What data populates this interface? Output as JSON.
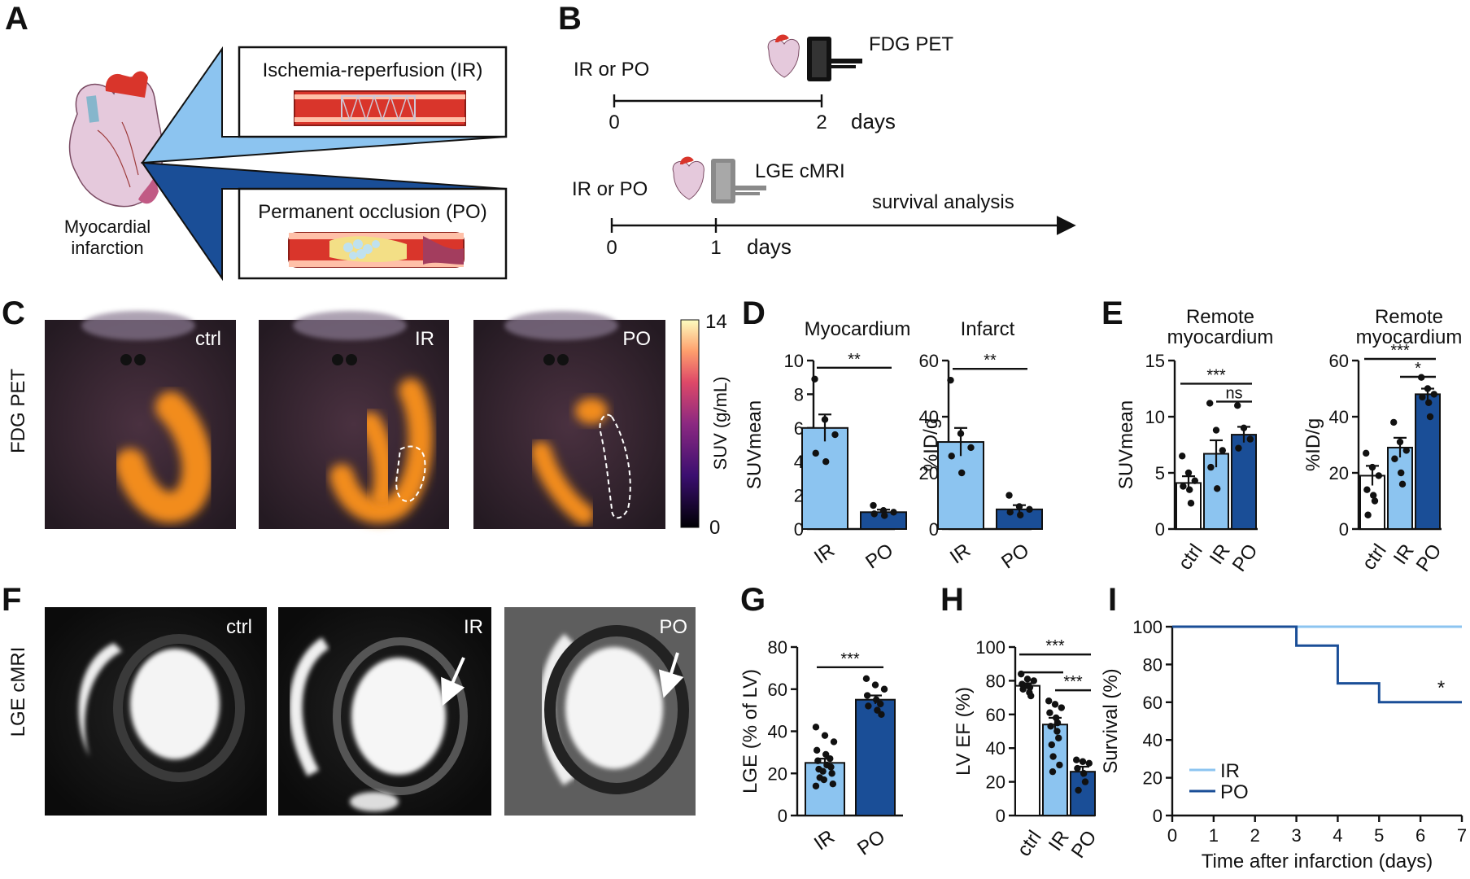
{
  "panels": {
    "A": {
      "letter": "A",
      "heart_label_line1": "Myocardial",
      "heart_label_line2": "infarction",
      "ir_label": "Ischemia-reperfusion (IR)",
      "po_label": "Permanent occlusion (PO)",
      "colors": {
        "ir": "#8cc4f0",
        "po": "#1a4e97"
      }
    },
    "B": {
      "letter": "B",
      "timeline1": {
        "group": "IR or PO",
        "modality": "FDG PET",
        "ticks": [
          "0",
          "2"
        ],
        "unit": "days"
      },
      "timeline2": {
        "group": "IR or PO",
        "modality": "LGE cMRI",
        "ticks": [
          "0",
          "1"
        ],
        "unit": "days",
        "arrow_label": "survival analysis"
      }
    },
    "C": {
      "letter": "C",
      "row_label": "FDG PET",
      "images": [
        "ctrl",
        "IR",
        "PO"
      ],
      "colorbar": {
        "label": "SUV (g/mL)",
        "max": "14",
        "min": "0"
      }
    },
    "D": {
      "letter": "D"
    },
    "E": {
      "letter": "E"
    },
    "F": {
      "letter": "F",
      "row_label": "LGE cMRI",
      "images": [
        "ctrl",
        "IR",
        "PO"
      ]
    },
    "G": {
      "letter": "G"
    },
    "H": {
      "letter": "H"
    },
    "I": {
      "letter": "I"
    }
  },
  "chart_data": [
    {
      "id": "D1",
      "type": "bar",
      "title": "Myocardium",
      "ylabel": "SUVmean",
      "categories": [
        "IR",
        "PO"
      ],
      "values": [
        6.0,
        1.0
      ],
      "errors": [
        0.8,
        0.15
      ],
      "ylim": [
        0,
        10
      ],
      "yticks": [
        "0",
        "2",
        "4",
        "6",
        "8",
        "10"
      ],
      "colors": [
        "#8cc4f0",
        "#1a4e97"
      ],
      "points": [
        [
          8.9,
          6.5,
          5.6,
          4.5,
          4.0
        ],
        [
          1.4,
          1.1,
          1.0,
          0.9,
          0.8
        ]
      ],
      "significance": [
        {
          "from": 0,
          "to": 1,
          "label": "**"
        }
      ]
    },
    {
      "id": "D2",
      "type": "bar",
      "title": "Infarct",
      "ylabel": "%ID/g",
      "categories": [
        "IR",
        "PO"
      ],
      "values": [
        31,
        7
      ],
      "errors": [
        5,
        1.5
      ],
      "ylim": [
        0,
        60
      ],
      "yticks": [
        "0",
        "20",
        "40",
        "60"
      ],
      "colors": [
        "#8cc4f0",
        "#1a4e97"
      ],
      "points": [
        [
          53,
          34,
          29,
          26,
          20
        ],
        [
          12,
          8,
          7,
          6,
          5
        ]
      ],
      "significance": [
        {
          "from": 0,
          "to": 1,
          "label": "**"
        }
      ]
    },
    {
      "id": "E1",
      "type": "bar",
      "title_line1": "Remote",
      "title_line2": "myocardium",
      "ylabel": "SUVmean",
      "categories": [
        "ctrl",
        "IR",
        "PO"
      ],
      "values": [
        4.1,
        6.7,
        8.4
      ],
      "errors": [
        0.6,
        1.2,
        0.7
      ],
      "ylim": [
        0,
        15
      ],
      "yticks": [
        "0",
        "5",
        "10",
        "15"
      ],
      "colors": [
        "#ffffff",
        "#8cc4f0",
        "#1a4e97"
      ],
      "points": [
        [
          6.5,
          5.0,
          4.3,
          3.8,
          3.5,
          2.3
        ],
        [
          11.2,
          8.8,
          7.0,
          5.5,
          3.6
        ],
        [
          11.0,
          9.0,
          8.0,
          7.2
        ]
      ],
      "significance": [
        {
          "from": 0,
          "to": 2,
          "label": "***",
          "level": 0
        },
        {
          "from": 1,
          "to": 2,
          "label": "ns",
          "level": 1
        }
      ]
    },
    {
      "id": "E2",
      "type": "bar",
      "title_line1": "Remote",
      "title_line2": "myocardium",
      "ylabel": "%ID/g",
      "categories": [
        "ctrl",
        "IR",
        "PO"
      ],
      "values": [
        19,
        29,
        48
      ],
      "errors": [
        3.5,
        3.5,
        2
      ],
      "ylim": [
        0,
        60
      ],
      "yticks": [
        "0",
        "20",
        "40",
        "60"
      ],
      "colors": [
        "#ffffff",
        "#8cc4f0",
        "#1a4e97"
      ],
      "points": [
        [
          27,
          22,
          19,
          14,
          12,
          10,
          5
        ],
        [
          38,
          31,
          28,
          25,
          20,
          16
        ],
        [
          54,
          50,
          48,
          47,
          45,
          40
        ]
      ],
      "significance": [
        {
          "from": 0,
          "to": 2,
          "label": "***",
          "level": 0
        },
        {
          "from": 1,
          "to": 2,
          "label": "*",
          "level": 1
        }
      ]
    },
    {
      "id": "G",
      "type": "bar",
      "ylabel": "LGE (% of LV)",
      "categories": [
        "IR",
        "PO"
      ],
      "values": [
        25,
        55
      ],
      "errors": [
        2,
        2
      ],
      "ylim": [
        0,
        80
      ],
      "yticks": [
        "0",
        "20",
        "40",
        "60",
        "80"
      ],
      "colors": [
        "#8cc4f0",
        "#1a4e97"
      ],
      "points": [
        [
          42,
          38,
          35,
          31,
          29,
          27,
          26,
          24,
          23,
          22,
          21,
          20,
          18,
          17,
          15,
          14
        ],
        [
          65,
          62,
          60,
          57,
          55,
          53,
          52,
          50,
          48
        ]
      ],
      "significance": [
        {
          "from": 0,
          "to": 1,
          "label": "***"
        }
      ]
    },
    {
      "id": "H",
      "type": "bar",
      "ylabel": "LV EF (%)",
      "categories": [
        "ctrl",
        "IR",
        "PO"
      ],
      "values": [
        77,
        54,
        26
      ],
      "errors": [
        1.5,
        4,
        3
      ],
      "ylim": [
        0,
        100
      ],
      "yticks": [
        "0",
        "20",
        "40",
        "60",
        "80",
        "100"
      ],
      "colors": [
        "#ffffff",
        "#8cc4f0",
        "#1a4e97"
      ],
      "points": [
        [
          84,
          81,
          80,
          78,
          77,
          76,
          75,
          73,
          71
        ],
        [
          68,
          66,
          64,
          61,
          58,
          55,
          53,
          50,
          46,
          42,
          35,
          30,
          26
        ],
        [
          33,
          32,
          31,
          28,
          25,
          20,
          15
        ]
      ],
      "significance": [
        {
          "from": 0,
          "to": 2,
          "label": "***",
          "level": 0
        },
        {
          "from": 0,
          "to": 1,
          "label": "",
          "level": 1
        },
        {
          "from": 1,
          "to": 2,
          "label": "***",
          "level": 2
        }
      ]
    },
    {
      "id": "I",
      "type": "line",
      "xlabel": "Time after infarction (days)",
      "ylabel": "Survival (%)",
      "xlim": [
        0,
        7
      ],
      "ylim": [
        0,
        100
      ],
      "xticks": [
        "0",
        "1",
        "2",
        "3",
        "4",
        "5",
        "6",
        "7"
      ],
      "yticks": [
        "0",
        "20",
        "40",
        "60",
        "80",
        "100"
      ],
      "series": [
        {
          "name": "IR",
          "color": "#8cc4f0",
          "steps": [
            [
              0,
              100
            ],
            [
              7,
              100
            ]
          ]
        },
        {
          "name": "PO",
          "color": "#1a4e97",
          "steps": [
            [
              0,
              100
            ],
            [
              3,
              100
            ],
            [
              3,
              90
            ],
            [
              4,
              90
            ],
            [
              4,
              70
            ],
            [
              5,
              70
            ],
            [
              5,
              60
            ],
            [
              7,
              60
            ]
          ]
        }
      ],
      "annotation": "*"
    }
  ]
}
